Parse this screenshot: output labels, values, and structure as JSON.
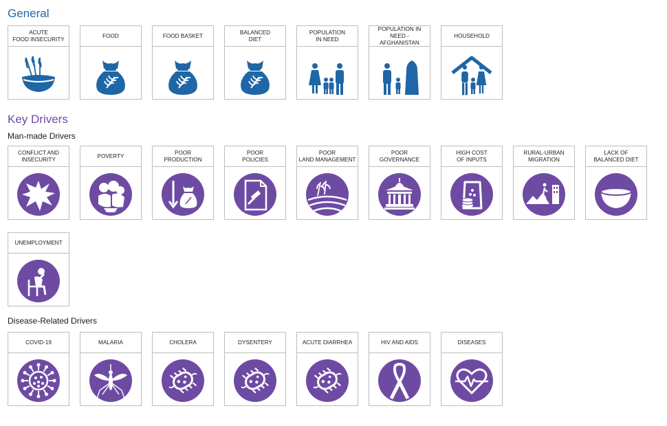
{
  "colors": {
    "blue": "#1f66a6",
    "purple": "#6e4ba3"
  },
  "sections": {
    "general": {
      "title": "General",
      "tiles": [
        {
          "label": "ACUTE\nFOOD INSECURITY",
          "icon": "grain-bowl-icon"
        },
        {
          "label": "FOOD",
          "icon": "food-sack-icon"
        },
        {
          "label": "FOOD BASKET",
          "icon": "food-sack-icon"
        },
        {
          "label": "BALANCED\nDIET",
          "icon": "food-sack-icon"
        },
        {
          "label": "POPULATION\nIN NEED",
          "icon": "family-icon"
        },
        {
          "label": "POPULATION IN\nNEED - AFGHANISTAN",
          "icon": "family-afghanistan-icon"
        },
        {
          "label": "HOUSEHOLD",
          "icon": "household-icon"
        }
      ]
    },
    "key_drivers": {
      "title": "Key Drivers",
      "man_made": {
        "title": "Man-made Drivers",
        "tiles": [
          {
            "label": "CONFLICT AND\nINSECURITY",
            "icon": "explosion-icon"
          },
          {
            "label": "POVERTY",
            "icon": "poverty-icon"
          },
          {
            "label": "POOR\nPRODUCTION",
            "icon": "poor-production-icon"
          },
          {
            "label": "POOR\nPOLICIES",
            "icon": "policy-document-icon"
          },
          {
            "label": "POOR\nLAND MANAGEMENT",
            "icon": "land-icon"
          },
          {
            "label": "POOR\nGOVERNANCE",
            "icon": "government-building-icon"
          },
          {
            "label": "HIGH COST\nOF INPUTS",
            "icon": "inputs-cost-icon"
          },
          {
            "label": "RURAL-URBAN\nMIGRATION",
            "icon": "migration-icon"
          },
          {
            "label": "LACK OF\nBALANCED DIET",
            "icon": "empty-bowl-icon"
          },
          {
            "label": "UNEMPLOYMENT",
            "icon": "unemployed-person-icon"
          }
        ]
      },
      "disease": {
        "title": "Disease-Related Drivers",
        "tiles": [
          {
            "label": "COVID-19",
            "icon": "virus-icon"
          },
          {
            "label": "MALARIA",
            "icon": "mosquito-icon"
          },
          {
            "label": "CHOLERA",
            "icon": "bacteria-icon"
          },
          {
            "label": "DYSENTERY",
            "icon": "bacteria-icon"
          },
          {
            "label": "ACUTE DIARRHEA",
            "icon": "bacteria-icon"
          },
          {
            "label": "HIV AND AIDS",
            "icon": "awareness-ribbon-icon"
          },
          {
            "label": "DISEASES",
            "icon": "heartbeat-icon"
          }
        ]
      }
    }
  }
}
